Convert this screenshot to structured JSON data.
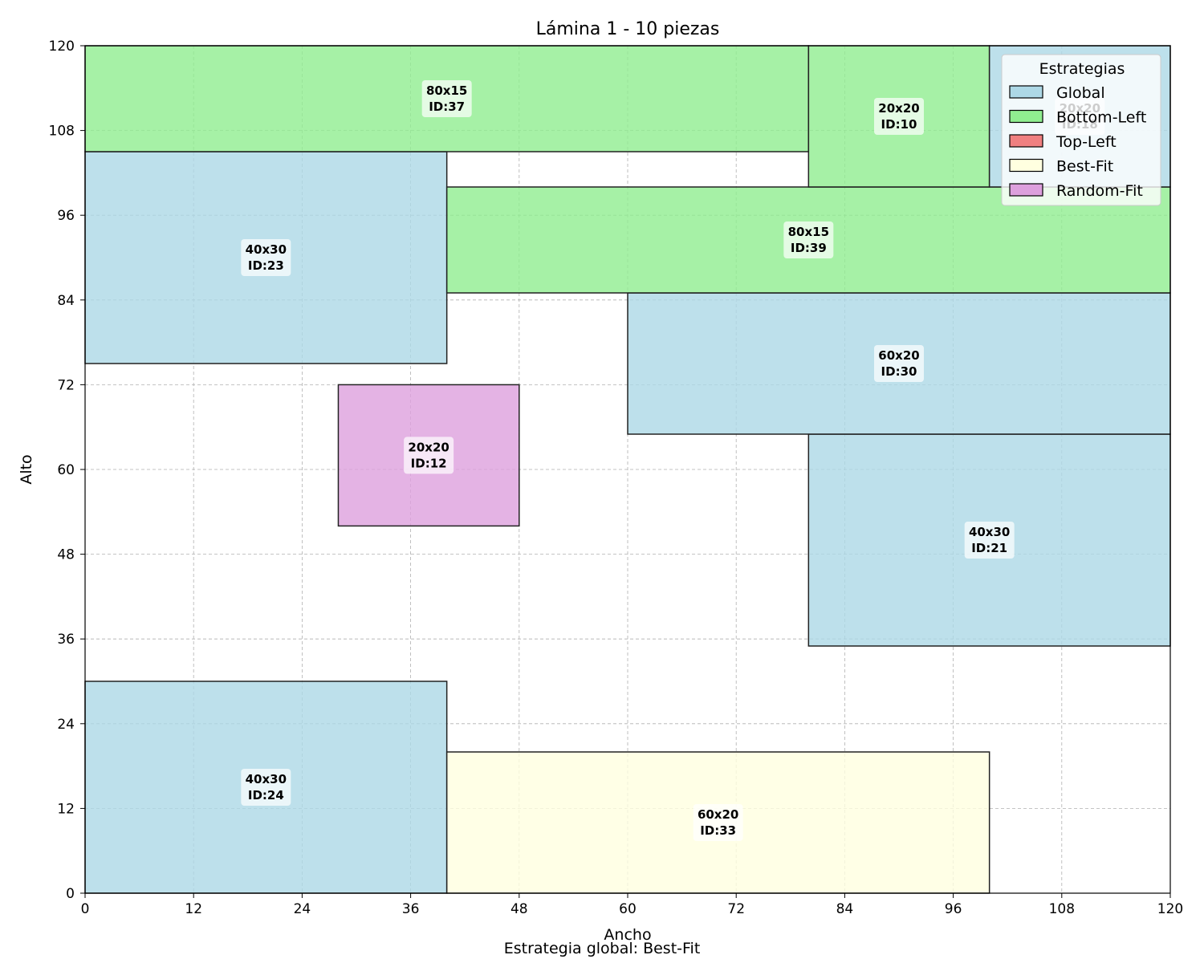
{
  "chart_data": {
    "type": "rectangle-packing",
    "title": "Lámina 1 - 10 piezas",
    "xlabel": "Ancho",
    "ylabel": "Alto",
    "footer": "Estrategia global: Best-Fit",
    "xlim": [
      0,
      120
    ],
    "ylim": [
      0,
      120
    ],
    "xticks": [
      0,
      12,
      24,
      36,
      48,
      60,
      72,
      84,
      96,
      108,
      120
    ],
    "yticks": [
      0,
      12,
      24,
      36,
      48,
      60,
      72,
      84,
      96,
      108,
      120
    ],
    "grid": true,
    "legend": {
      "title": "Estrategias",
      "placement": "top-right",
      "entries": [
        {
          "name": "Global",
          "color": "#add8e6"
        },
        {
          "name": "Bottom-Left",
          "color": "#90ee90"
        },
        {
          "name": "Top-Left",
          "color": "#f08080"
        },
        {
          "name": "Best-Fit",
          "color": "#ffffe0"
        },
        {
          "name": "Random-Fit",
          "color": "#dda0dd"
        }
      ]
    },
    "pieces": [
      {
        "id": "24",
        "size": "40x30",
        "x": 0,
        "y": 0,
        "w": 40,
        "h": 30,
        "strategy": "Global",
        "label": "40x30\nID:24"
      },
      {
        "id": "33",
        "size": "60x20",
        "x": 40,
        "y": 0,
        "w": 60,
        "h": 20,
        "strategy": "Best-Fit",
        "label": "60x20\nID:33"
      },
      {
        "id": "21",
        "size": "40x30",
        "x": 80,
        "y": 35,
        "w": 40,
        "h": 30,
        "strategy": "Global",
        "label": "40x30\nID:21"
      },
      {
        "id": "30",
        "size": "60x20",
        "x": 60,
        "y": 65,
        "w": 60,
        "h": 20,
        "strategy": "Global",
        "label": "60x20\nID:30"
      },
      {
        "id": "12",
        "size": "20x20",
        "x": 28,
        "y": 52,
        "w": 20,
        "h": 20,
        "strategy": "Random-Fit",
        "label": "20x20\nID:12"
      },
      {
        "id": "23",
        "size": "40x30",
        "x": 0,
        "y": 75,
        "w": 40,
        "h": 30,
        "strategy": "Global",
        "label": "40x30\nID:23"
      },
      {
        "id": "39",
        "size": "80x15",
        "x": 40,
        "y": 85,
        "w": 80,
        "h": 15,
        "strategy": "Bottom-Left",
        "label": "80x15\nID:39"
      },
      {
        "id": "37",
        "size": "80x15",
        "x": 0,
        "y": 105,
        "w": 80,
        "h": 15,
        "strategy": "Bottom-Left",
        "label": "80x15\nID:37"
      },
      {
        "id": "10",
        "size": "20x20",
        "x": 80,
        "y": 100,
        "w": 20,
        "h": 20,
        "strategy": "Bottom-Left",
        "label": "20x20\nID:10"
      },
      {
        "id": "18",
        "size": "20x20",
        "x": 100,
        "y": 100,
        "w": 20,
        "h": 20,
        "strategy": "Global",
        "label": "20x20\nID:18"
      }
    ]
  }
}
